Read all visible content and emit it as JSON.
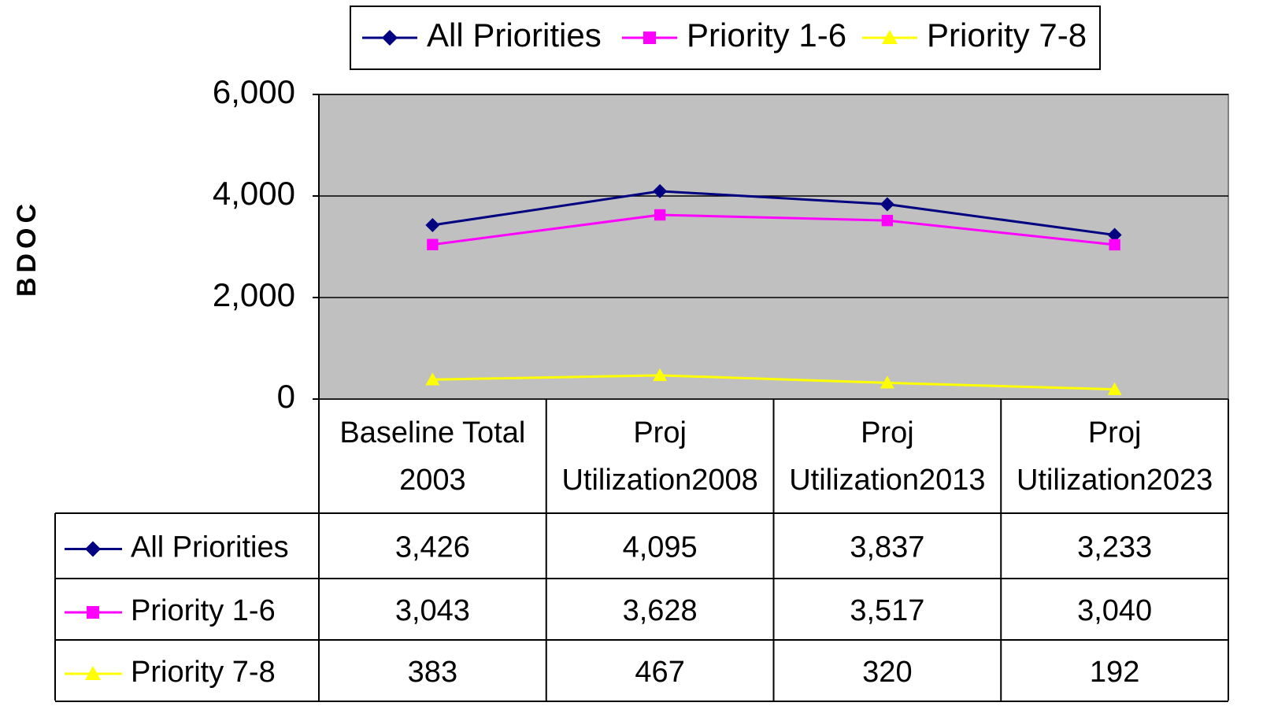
{
  "chart_data": {
    "type": "line",
    "y_label": "BDOC",
    "categories": [
      [
        "Baseline Total",
        "2003"
      ],
      [
        "Proj",
        "Utilization2008"
      ],
      [
        "Proj",
        "Utilization2013"
      ],
      [
        "Proj",
        "Utilization2023"
      ]
    ],
    "series": [
      {
        "name": "All Priorities",
        "color": "#000080",
        "marker": "diamond",
        "values": [
          3426,
          4095,
          3837,
          3233
        ],
        "value_labels": [
          "3,426",
          "4,095",
          "3,837",
          "3,233"
        ]
      },
      {
        "name": "Priority 1-6",
        "color": "#ff00ff",
        "marker": "square",
        "values": [
          3043,
          3628,
          3517,
          3040
        ],
        "value_labels": [
          "3,043",
          "3,628",
          "3,517",
          "3,040"
        ]
      },
      {
        "name": "Priority 7-8",
        "color": "#ffff00",
        "marker": "triangle",
        "values": [
          383,
          467,
          320,
          192
        ],
        "value_labels": [
          "383",
          "467",
          "320",
          "192"
        ]
      }
    ],
    "ylim": [
      0,
      6000
    ],
    "yticks": [
      0,
      {
        "value": 2000,
        "label": "2,000"
      },
      {
        "value": 4000,
        "label": "4,000"
      },
      {
        "value": 6000,
        "label": "6,000"
      }
    ],
    "grid": true,
    "legend": "top"
  }
}
